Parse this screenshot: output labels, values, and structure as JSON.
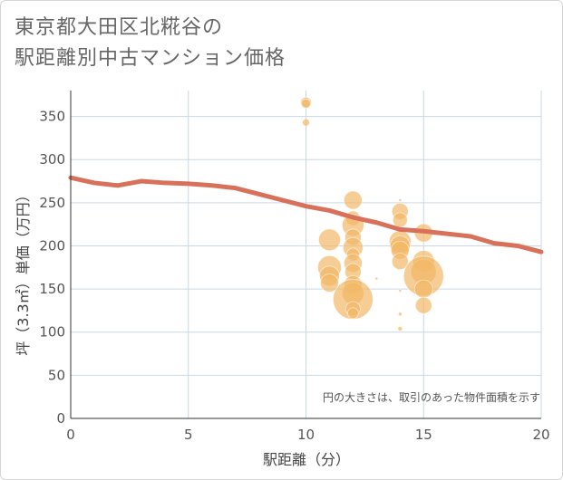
{
  "title_line1": "東京都大田区北糀谷の",
  "title_line2": "駅距離別中古マンション価格",
  "chart_data": {
    "type": "scatter",
    "xlabel": "駅距離（分）",
    "ylabel": "坪（3.3㎡）単価（万円）",
    "xlim": [
      0,
      20
    ],
    "ylim": [
      0,
      380
    ],
    "xticks": [
      0,
      5,
      10,
      15,
      20
    ],
    "yticks": [
      0,
      50,
      100,
      150,
      200,
      250,
      300,
      350
    ],
    "grid": true,
    "note": "円の大きさは、取引のあった物件面積を示す",
    "colors": {
      "bubble": "#f2b866",
      "line": "#d9705a",
      "grid": "#c9d7e6"
    },
    "points": [
      {
        "x": 10,
        "y": 366,
        "size": 6
      },
      {
        "x": 10,
        "y": 365,
        "size": 5
      },
      {
        "x": 10,
        "y": 343,
        "size": 4
      },
      {
        "x": 12,
        "y": 253,
        "size": 10
      },
      {
        "x": 12,
        "y": 232,
        "size": 8
      },
      {
        "x": 12,
        "y": 224,
        "size": 12
      },
      {
        "x": 12,
        "y": 210,
        "size": 9
      },
      {
        "x": 12,
        "y": 198,
        "size": 11
      },
      {
        "x": 12,
        "y": 190,
        "size": 7
      },
      {
        "x": 12,
        "y": 180,
        "size": 10
      },
      {
        "x": 12,
        "y": 170,
        "size": 9
      },
      {
        "x": 12,
        "y": 155,
        "size": 10
      },
      {
        "x": 12,
        "y": 145,
        "size": 12
      },
      {
        "x": 12,
        "y": 138,
        "size": 22
      },
      {
        "x": 12,
        "y": 127,
        "size": 8
      },
      {
        "x": 12,
        "y": 122,
        "size": 6
      },
      {
        "x": 11,
        "y": 207,
        "size": 12
      },
      {
        "x": 11,
        "y": 175,
        "size": 13
      },
      {
        "x": 11,
        "y": 165,
        "size": 11
      },
      {
        "x": 11,
        "y": 157,
        "size": 10
      },
      {
        "x": 13,
        "y": 162,
        "size": 1.5
      },
      {
        "x": 14,
        "y": 240,
        "size": 9
      },
      {
        "x": 14,
        "y": 230,
        "size": 8
      },
      {
        "x": 14,
        "y": 205,
        "size": 12
      },
      {
        "x": 14,
        "y": 200,
        "size": 11
      },
      {
        "x": 14,
        "y": 195,
        "size": 10
      },
      {
        "x": 14,
        "y": 182,
        "size": 9
      },
      {
        "x": 14,
        "y": 253,
        "size": 1.5
      },
      {
        "x": 14,
        "y": 148,
        "size": 1.5
      },
      {
        "x": 14,
        "y": 121,
        "size": 2
      },
      {
        "x": 14,
        "y": 104,
        "size": 2.5
      },
      {
        "x": 15,
        "y": 215,
        "size": 10
      },
      {
        "x": 15,
        "y": 182,
        "size": 12
      },
      {
        "x": 15,
        "y": 170,
        "size": 14
      },
      {
        "x": 15,
        "y": 165,
        "size": 22
      },
      {
        "x": 15,
        "y": 150,
        "size": 10
      },
      {
        "x": 15,
        "y": 131,
        "size": 9
      }
    ],
    "line": {
      "x": [
        0,
        1,
        2,
        3,
        4,
        5,
        6,
        7,
        8,
        9,
        10,
        11,
        12,
        13,
        14,
        15,
        16,
        17,
        18,
        19,
        20
      ],
      "y": [
        279,
        273,
        270,
        275,
        273,
        272,
        270,
        267,
        260,
        253,
        246,
        241,
        233,
        227,
        219,
        217,
        214,
        211,
        203,
        200,
        193
      ]
    }
  }
}
